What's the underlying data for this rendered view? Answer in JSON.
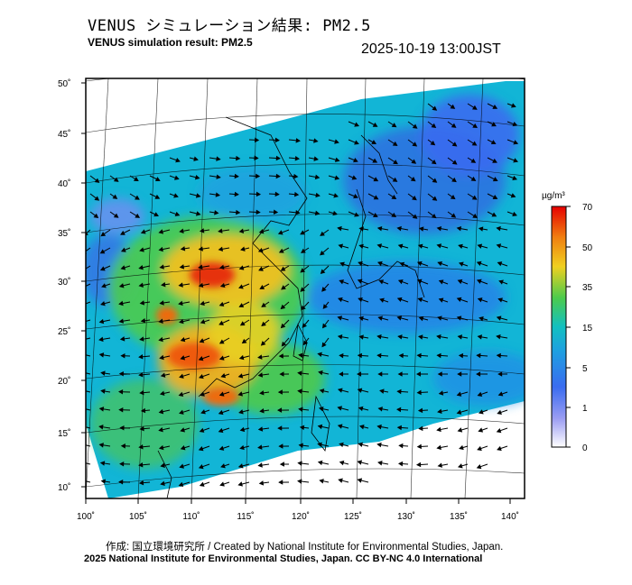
{
  "title": {
    "jp": "VENUS シミュレーション結果: PM2.5",
    "en": "VENUS simulation result: PM2.5"
  },
  "timestamp": "2025-10-19 13:00JST",
  "credits": {
    "line1": "作成: 国立環境研究所 / Created by National Institute for Environmental Studies, Japan.",
    "line2": "2025 National Institute for Environmental Studies, Japan. CC BY-NC 4.0 International"
  },
  "colorbar": {
    "unit": "µg/m³",
    "ticks": [
      "0",
      "1",
      "5",
      "15",
      "35",
      "50",
      "70"
    ],
    "colors": [
      "#ffffff",
      "#7f7fff",
      "#1e90ff",
      "#00cccc",
      "#2ecc40",
      "#ffd700",
      "#ff8c00",
      "#e60000"
    ]
  },
  "axes": {
    "lat_labels": [
      "50˚",
      "45˚",
      "40˚",
      "35˚",
      "30˚",
      "25˚",
      "20˚",
      "15˚",
      "10˚"
    ],
    "lon_labels": [
      "100˚",
      "105˚",
      "110˚",
      "115˚",
      "120˚",
      "125˚",
      "130˚",
      "135˚",
      "140˚"
    ]
  },
  "map": {
    "ocean_color": "#ffffff",
    "low_color": "#1e90ff",
    "mid_color": "#00cccc",
    "high_color": "#ff8c00",
    "peak_color": "#e60000"
  }
}
